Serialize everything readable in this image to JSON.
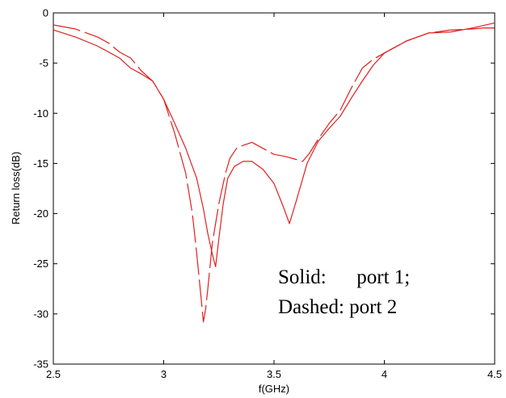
{
  "chart_data": {
    "type": "line",
    "title": "",
    "xlabel": "f(GHz)",
    "ylabel": "Return loss(dB)",
    "xlim": [
      2.5,
      4.5
    ],
    "ylim": [
      -35,
      0
    ],
    "xticks": [
      2.5,
      3,
      3.5,
      4,
      4.5
    ],
    "xtick_labels": [
      "2.5",
      "3",
      "3.5",
      "4",
      "4.5"
    ],
    "yticks": [
      0,
      -5,
      -10,
      -15,
      -20,
      -25,
      -30,
      -35
    ],
    "ytick_labels": [
      "0",
      "-5",
      "-10",
      "-15",
      "-20",
      "-25",
      "-30",
      "-35"
    ],
    "grid": false,
    "line_color": "#e02020",
    "annotations": [
      "Solid:      port 1;",
      "Dashed: port 2"
    ],
    "series": [
      {
        "style": "solid",
        "x": [
          2.5,
          2.6,
          2.7,
          2.8,
          2.85,
          2.9,
          2.95,
          3.0,
          3.05,
          3.1,
          3.15,
          3.18,
          3.2,
          3.22,
          3.235,
          3.25,
          3.27,
          3.29,
          3.32,
          3.36,
          3.4,
          3.45,
          3.5,
          3.54,
          3.57,
          3.6,
          3.65,
          3.7,
          3.75,
          3.8,
          3.85,
          3.9,
          3.95,
          4.0,
          4.1,
          4.2,
          4.3,
          4.4,
          4.5
        ],
        "y": [
          -1.7,
          -2.4,
          -3.3,
          -4.5,
          -5.5,
          -6.1,
          -6.8,
          -8.6,
          -11.0,
          -13.5,
          -16.5,
          -19.5,
          -22.0,
          -24.0,
          -25.3,
          -22.5,
          -19.0,
          -16.5,
          -15.3,
          -14.8,
          -14.8,
          -15.6,
          -17.0,
          -19.2,
          -21.0,
          -18.8,
          -15.0,
          -12.8,
          -11.5,
          -10.3,
          -8.5,
          -6.8,
          -5.2,
          -4.0,
          -2.8,
          -2.0,
          -1.9,
          -1.5,
          -1.0
        ]
      },
      {
        "style": "dashed",
        "x": [
          2.5,
          2.6,
          2.7,
          2.75,
          2.8,
          2.85,
          2.9,
          2.95,
          3.0,
          3.05,
          3.1,
          3.13,
          3.15,
          3.17,
          3.18,
          3.19,
          3.2,
          3.22,
          3.25,
          3.28,
          3.3,
          3.33,
          3.36,
          3.4,
          3.45,
          3.5,
          3.55,
          3.6,
          3.63,
          3.66,
          3.7,
          3.75,
          3.8,
          3.85,
          3.9,
          3.95,
          4.0,
          4.1,
          4.2,
          4.3,
          4.4,
          4.45,
          4.5
        ],
        "y": [
          -1.2,
          -1.6,
          -2.4,
          -3.0,
          -3.9,
          -4.5,
          -5.8,
          -6.8,
          -8.6,
          -12.0,
          -16.0,
          -20.0,
          -24.0,
          -28.5,
          -30.8,
          -29.5,
          -27.5,
          -23.0,
          -19.0,
          -16.0,
          -14.5,
          -13.5,
          -13.2,
          -12.9,
          -13.5,
          -14.1,
          -14.3,
          -14.6,
          -14.8,
          -14.0,
          -12.6,
          -11.0,
          -9.7,
          -7.5,
          -5.5,
          -4.6,
          -4.0,
          -2.8,
          -2.0,
          -1.7,
          -1.6,
          -1.5,
          -1.5
        ]
      }
    ]
  }
}
